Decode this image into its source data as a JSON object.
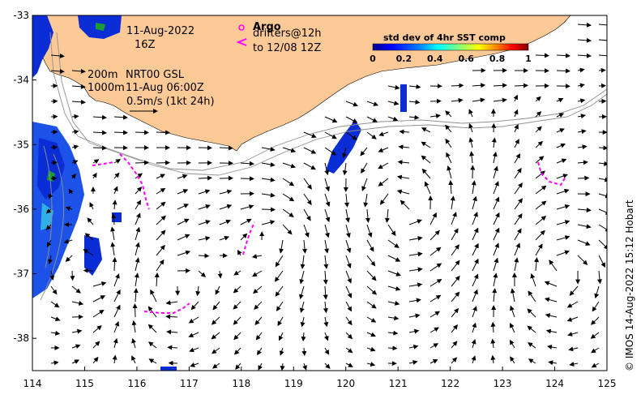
{
  "map": {
    "date_line": "11-Aug-2022",
    "time_line": "16Z",
    "argo_label": "Argo",
    "drifters_line1": "drifters@12h",
    "drifters_line2": "to 12/08 12Z",
    "contour_200": "200m",
    "contour_1000": "1000m",
    "product": "NRT00 GSL",
    "product_time": "11-Aug 06:00Z",
    "scale_label": "0.5m/s (1kt 24h)",
    "credit": "© IMOS 14-Aug-2022 15:12 Hobart",
    "colors": {
      "land": "#fdc996",
      "ocean": "#ffffff",
      "drifter": "#ff00ff",
      "arrow": "#000000",
      "contour": "#808080"
    }
  },
  "colorbar": {
    "title": "std dev of 4hr SST comp",
    "ticks": [
      "0",
      "0.2",
      "0.4",
      "0.6",
      "0.8",
      "1"
    ],
    "colors": [
      "#00008f",
      "#0000ff",
      "#0080ff",
      "#00ffff",
      "#80ff80",
      "#ffff00",
      "#ff8000",
      "#ff0000",
      "#800000"
    ]
  },
  "axes": {
    "x_ticks": [
      "114",
      "115",
      "116",
      "117",
      "118",
      "119",
      "120",
      "121",
      "122",
      "123",
      "124",
      "125"
    ],
    "y_ticks": [
      "-33",
      "-34",
      "-35",
      "-36",
      "-37",
      "-38"
    ],
    "xlim": [
      114,
      125
    ],
    "ylim": [
      -38.5,
      -33
    ]
  }
}
